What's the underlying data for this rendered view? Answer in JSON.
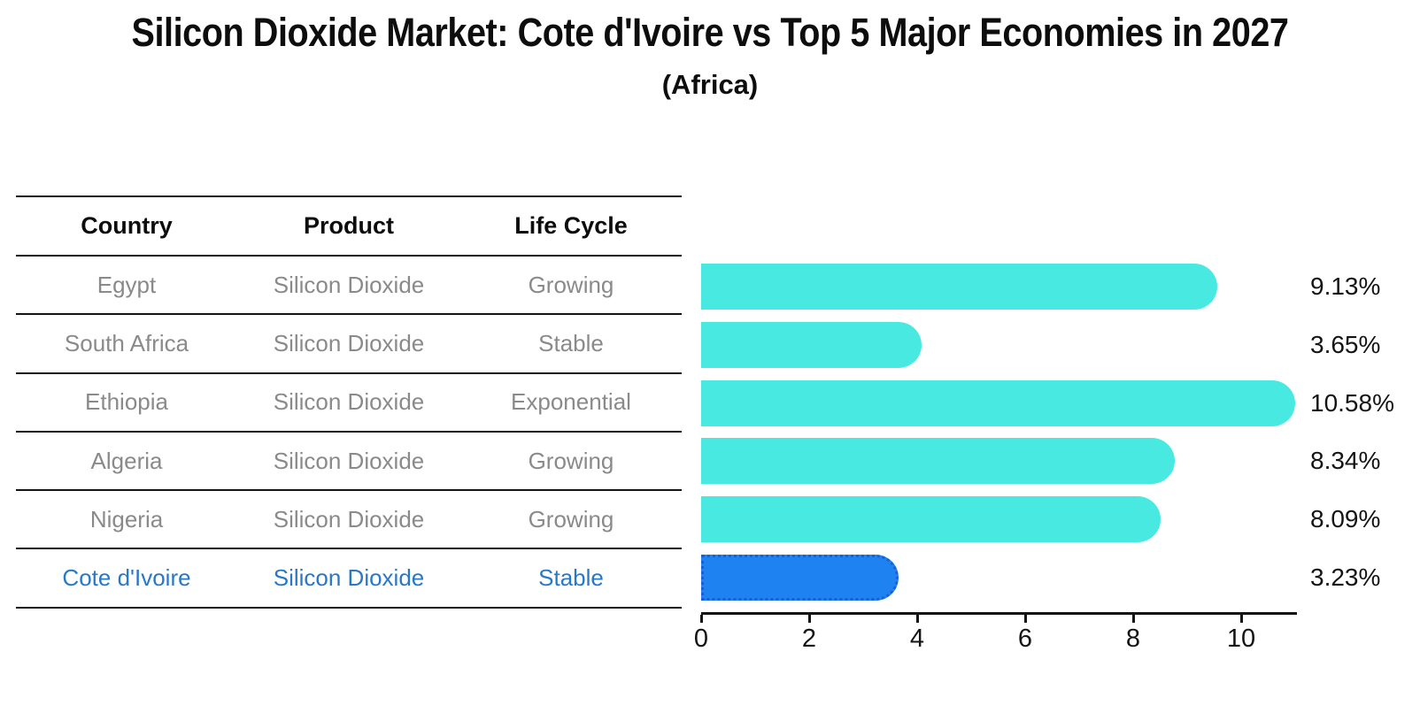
{
  "title": "Silicon Dioxide Market: Cote d'Ivoire vs Top 5 Major Economies in 2027",
  "subtitle": "(Africa)",
  "table": {
    "headers": [
      "Country",
      "Product",
      "Life Cycle"
    ],
    "rows": [
      {
        "country": "Egypt",
        "product": "Silicon Dioxide",
        "life_cycle": "Growing",
        "highlight": false
      },
      {
        "country": "South Africa",
        "product": "Silicon Dioxide",
        "life_cycle": "Stable",
        "highlight": false
      },
      {
        "country": "Ethiopia",
        "product": "Silicon Dioxide",
        "life_cycle": "Exponential",
        "highlight": false
      },
      {
        "country": "Algeria",
        "product": "Silicon Dioxide",
        "life_cycle": "Growing",
        "highlight": false
      },
      {
        "country": "Nigeria",
        "product": "Silicon Dioxide",
        "life_cycle": "Growing",
        "highlight": false
      },
      {
        "country": "Cote d'Ivoire",
        "product": "Silicon Dioxide",
        "life_cycle": "Stable",
        "highlight": true
      }
    ]
  },
  "chart_data": {
    "type": "bar",
    "orientation": "horizontal",
    "categories": [
      "Egypt",
      "South Africa",
      "Ethiopia",
      "Algeria",
      "Nigeria",
      "Cote d'Ivoire"
    ],
    "values": [
      9.13,
      3.65,
      10.58,
      8.34,
      8.09,
      3.23
    ],
    "value_labels": [
      "9.13%",
      "3.65%",
      "10.58%",
      "8.34%",
      "8.09%",
      "3.23%"
    ],
    "xlim": [
      0,
      11
    ],
    "x_ticks": [
      0,
      2,
      4,
      6,
      8,
      10
    ],
    "grid": false,
    "legend": "none",
    "bar_color": "#48e9e1",
    "highlight_bar_color": "#1e82f0",
    "highlight_border_color": "#1a5fd6",
    "highlight_index": 5,
    "title": "Silicon Dioxide Market: Cote d'Ivoire vs Top 5 Major Economies in 2027",
    "subtitle": "(Africa)"
  },
  "colors": {
    "text_dark": "#0d0d0d",
    "row_text_gray": "#8a8a8a",
    "highlight_text_blue": "#2878c8",
    "axis_black": "#141414"
  }
}
